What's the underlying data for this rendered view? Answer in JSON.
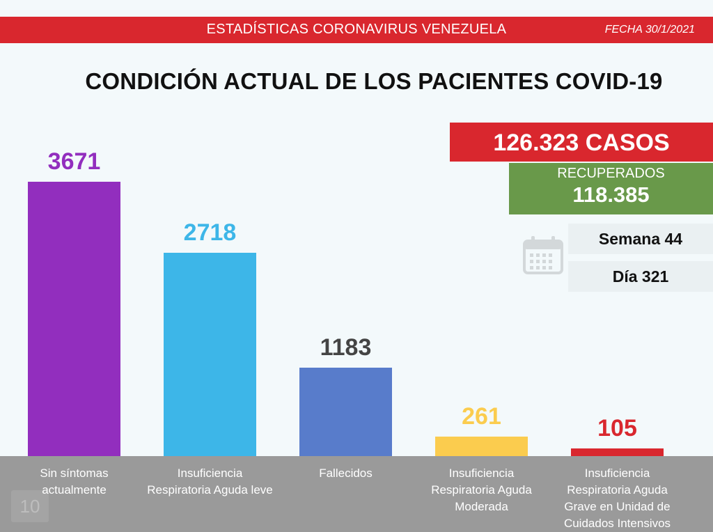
{
  "header": {
    "title": "ESTADÍSTICAS CORONAVIRUS VENEZUELA",
    "date": "FECHA 30/1/2021"
  },
  "summary": {
    "casos": "126.323 CASOS",
    "recuperados_label": "RECUPERADOS",
    "recuperados_value": "118.385",
    "semana": "Semana 44",
    "dia": "Día 321"
  },
  "page_number": "10",
  "icons": {
    "calendar": "calendar-icon"
  },
  "chart_data": {
    "type": "bar",
    "title": "CONDICIÓN ACTUAL DE LOS PACIENTES COVID-19",
    "categories": [
      [
        "Sin síntomas",
        "actualmente"
      ],
      [
        "Insuficiencia",
        "Respiratoria Aguda leve"
      ],
      [
        "Fallecidos"
      ],
      [
        "Insuficiencia",
        "Respiratoria Aguda",
        "Moderada"
      ],
      [
        "Insuficiencia",
        "Respiratoria Aguda",
        "Grave en Unidad de",
        "Cuidados Intensivos"
      ]
    ],
    "values": [
      3671,
      2718,
      1183,
      261,
      105
    ],
    "colors": [
      "#922ebe",
      "#3db6e8",
      "#587ccb",
      "#fbcc4e",
      "#d9272e"
    ],
    "label_colors": [
      "#922ebe",
      "#3db6e8",
      "#444444",
      "#fbcc4e",
      "#d9272e"
    ],
    "ylim": [
      0,
      3671
    ],
    "grid": false,
    "legend": "none"
  }
}
